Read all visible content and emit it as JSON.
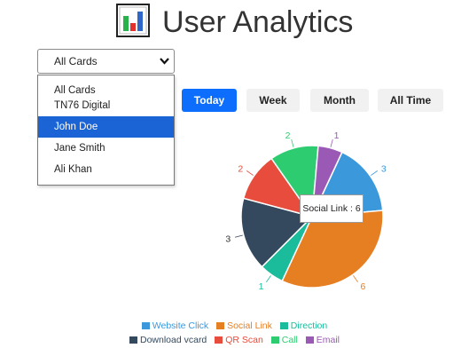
{
  "header": {
    "title": "User Analytics",
    "icon": "bar-chart-icon"
  },
  "card_select": {
    "value": "All Cards",
    "options": [
      "All Cards",
      "TN76 Digital",
      "John Doe",
      "Jane Smith",
      "Ali Khan"
    ],
    "highlighted": "John Doe"
  },
  "range_buttons": [
    {
      "label": "Today",
      "active": true
    },
    {
      "label": "Week",
      "active": false
    },
    {
      "label": "Month",
      "active": false
    },
    {
      "label": "All Time",
      "active": false
    }
  ],
  "tooltip": {
    "text": "Social Link : 6"
  },
  "chart_data": {
    "type": "pie",
    "title": "",
    "categories": [
      "Website Click",
      "Social Link",
      "Direction",
      "Download vcard",
      "QR Scan",
      "Call",
      "Email"
    ],
    "values": [
      3,
      6,
      1,
      3,
      2,
      2,
      1
    ],
    "colors": [
      "#3a98db",
      "#e67e22",
      "#1abc9c",
      "#34495e",
      "#e74c3c",
      "#2ecc71",
      "#9b59b6"
    ],
    "legend": "bottom"
  }
}
